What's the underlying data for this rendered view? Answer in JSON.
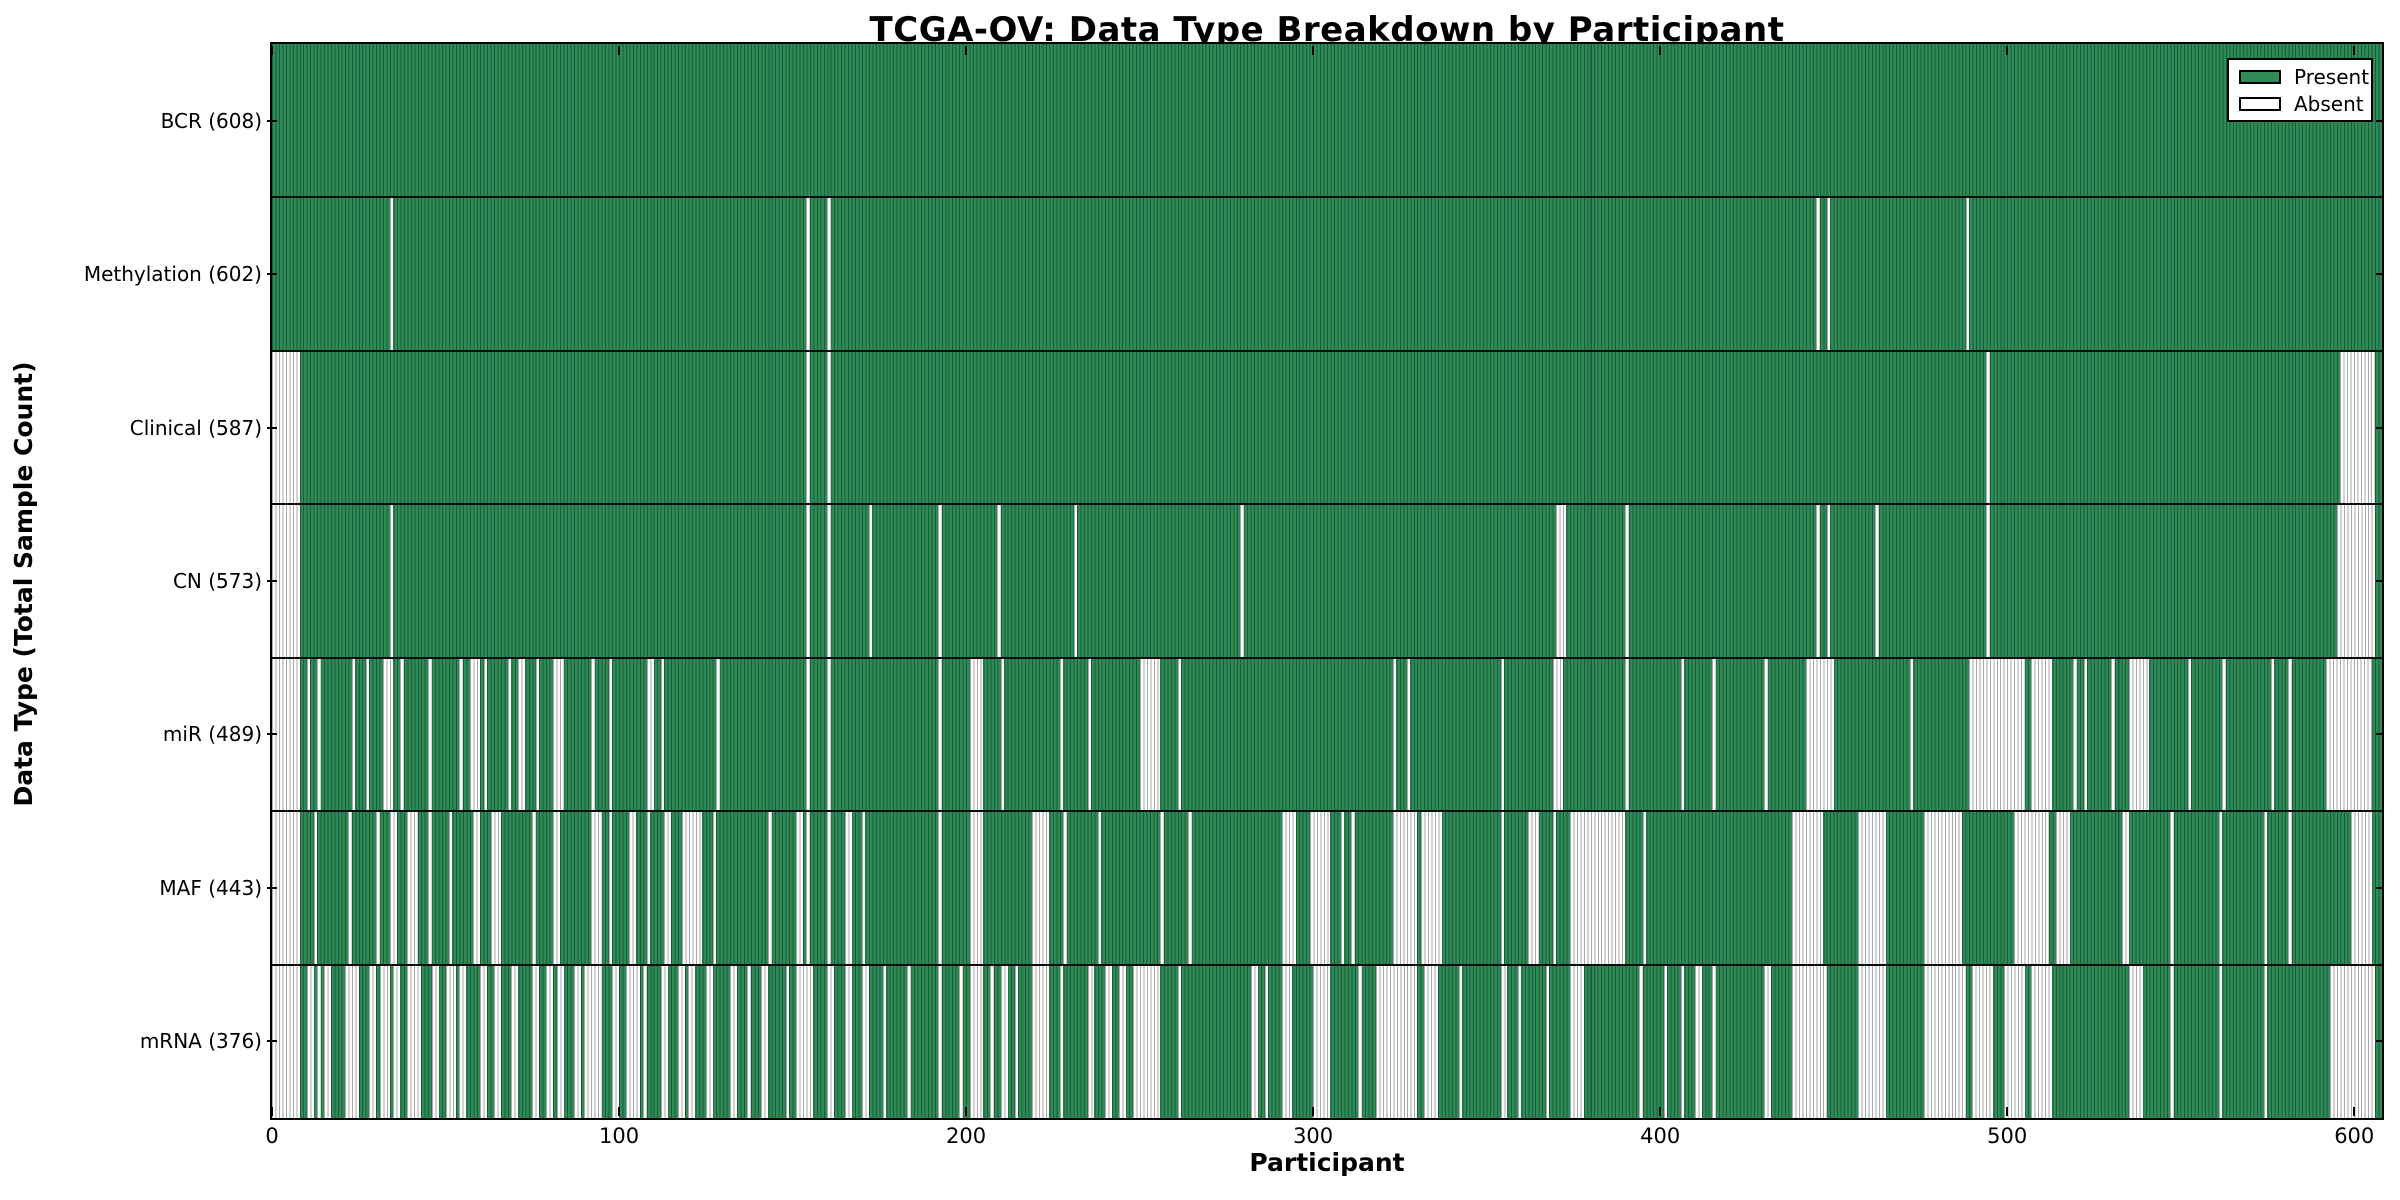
{
  "figure": {
    "title": "TCGA-OV: Data Type Breakdown by Participant",
    "xlabel": "Participant",
    "ylabel": "Data Type (Total Sample Count)"
  },
  "legend": {
    "present_label": "Present",
    "absent_label": "Absent"
  },
  "colors": {
    "present_fill": "#2e8b57",
    "present_edge": "#1a5c38",
    "absent_fill": "#fdfdfd",
    "absent_edge": "#a9a9a9",
    "frame": "#000000",
    "separator": "#0a0a0a"
  },
  "chart_data": {
    "type": "heatmap",
    "title": "TCGA-OV: Data Type Breakdown by Participant",
    "xlabel": "Participant",
    "ylabel": "Data Type (Total Sample Count)",
    "legend_entries": [
      {
        "label": "Present",
        "color": "#2e8b57"
      },
      {
        "label": "Absent",
        "color": "#ffffff"
      }
    ],
    "legend_position": "upper right",
    "grid": false,
    "n_participants": 608,
    "x_ticks": [
      0,
      100,
      200,
      300,
      400,
      500,
      600
    ],
    "x_range": [
      0,
      608
    ],
    "cell_values": "present unless participant index falls in absent_ranges (inclusive)",
    "rows": [
      {
        "label": "BCR (608)",
        "data_type": "BCR",
        "present_count": 608,
        "absent_ranges": []
      },
      {
        "label": "Methylation (602)",
        "data_type": "Methylation",
        "present_count": 602,
        "absent_ranges": [
          [
            34,
            34
          ],
          [
            154,
            154
          ],
          [
            160,
            160
          ],
          [
            445,
            445
          ],
          [
            448,
            448
          ],
          [
            488,
            488
          ]
        ]
      },
      {
        "label": "Clinical (587)",
        "data_type": "Clinical",
        "present_count": 587,
        "absent_ranges": [
          [
            0,
            7
          ],
          [
            154,
            154
          ],
          [
            160,
            160
          ],
          [
            494,
            494
          ],
          [
            596,
            605
          ]
        ]
      },
      {
        "label": "CN (573)",
        "data_type": "CN",
        "present_count": 573,
        "absent_ranges": [
          [
            0,
            7
          ],
          [
            34,
            34
          ],
          [
            154,
            154
          ],
          [
            160,
            160
          ],
          [
            172,
            172
          ],
          [
            192,
            192
          ],
          [
            209,
            209
          ],
          [
            231,
            231
          ],
          [
            279,
            279
          ],
          [
            370,
            372
          ],
          [
            390,
            390
          ],
          [
            445,
            445
          ],
          [
            448,
            448
          ],
          [
            462,
            462
          ],
          [
            494,
            494
          ],
          [
            595,
            605
          ]
        ]
      },
      {
        "label": "miR (489)",
        "data_type": "miR",
        "present_count": 489,
        "absent_ranges": [
          [
            0,
            7
          ],
          [
            10,
            10
          ],
          [
            13,
            13
          ],
          [
            23,
            23
          ],
          [
            27,
            27
          ],
          [
            32,
            34
          ],
          [
            37,
            37
          ],
          [
            45,
            45
          ],
          [
            54,
            54
          ],
          [
            57,
            59
          ],
          [
            61,
            61
          ],
          [
            68,
            68
          ],
          [
            71,
            72
          ],
          [
            76,
            76
          ],
          [
            81,
            83
          ],
          [
            92,
            92
          ],
          [
            97,
            97
          ],
          [
            108,
            109
          ],
          [
            112,
            112
          ],
          [
            128,
            128
          ],
          [
            154,
            154
          ],
          [
            160,
            160
          ],
          [
            192,
            192
          ],
          [
            201,
            204
          ],
          [
            210,
            210
          ],
          [
            227,
            227
          ],
          [
            235,
            235
          ],
          [
            250,
            255
          ],
          [
            261,
            261
          ],
          [
            323,
            323
          ],
          [
            327,
            327
          ],
          [
            354,
            354
          ],
          [
            369,
            371
          ],
          [
            390,
            390
          ],
          [
            406,
            406
          ],
          [
            415,
            415
          ],
          [
            430,
            430
          ],
          [
            442,
            449
          ],
          [
            472,
            472
          ],
          [
            489,
            504
          ],
          [
            507,
            512
          ],
          [
            519,
            519
          ],
          [
            522,
            522
          ],
          [
            530,
            530
          ],
          [
            535,
            540
          ],
          [
            552,
            552
          ],
          [
            562,
            562
          ],
          [
            576,
            576
          ],
          [
            581,
            581
          ],
          [
            592,
            604
          ]
        ]
      },
      {
        "label": "MAF (443)",
        "data_type": "MAF",
        "present_count": 443,
        "absent_ranges": [
          [
            0,
            7
          ],
          [
            12,
            12
          ],
          [
            22,
            22
          ],
          [
            30,
            30
          ],
          [
            34,
            35
          ],
          [
            39,
            41
          ],
          [
            45,
            45
          ],
          [
            51,
            51
          ],
          [
            58,
            59
          ],
          [
            63,
            65
          ],
          [
            75,
            75
          ],
          [
            81,
            82
          ],
          [
            92,
            94
          ],
          [
            97,
            97
          ],
          [
            103,
            104
          ],
          [
            108,
            108
          ],
          [
            113,
            114
          ],
          [
            118,
            123
          ],
          [
            127,
            127
          ],
          [
            143,
            143
          ],
          [
            151,
            152
          ],
          [
            154,
            154
          ],
          [
            160,
            160
          ],
          [
            165,
            166
          ],
          [
            170,
            170
          ],
          [
            192,
            192
          ],
          [
            201,
            204
          ],
          [
            219,
            223
          ],
          [
            228,
            228
          ],
          [
            238,
            238
          ],
          [
            256,
            256
          ],
          [
            264,
            264
          ],
          [
            291,
            294
          ],
          [
            299,
            304
          ],
          [
            308,
            308
          ],
          [
            311,
            311
          ],
          [
            323,
            329
          ],
          [
            331,
            336
          ],
          [
            354,
            354
          ],
          [
            362,
            364
          ],
          [
            369,
            369
          ],
          [
            374,
            389
          ],
          [
            395,
            395
          ],
          [
            438,
            446
          ],
          [
            457,
            464
          ],
          [
            476,
            486
          ],
          [
            502,
            511
          ],
          [
            514,
            517
          ],
          [
            533,
            534
          ],
          [
            547,
            547
          ],
          [
            561,
            561
          ],
          [
            574,
            574
          ],
          [
            581,
            581
          ],
          [
            599,
            604
          ]
        ]
      },
      {
        "label": "mRNA (376)",
        "data_type": "mRNA",
        "present_count": 376,
        "absent_ranges": [
          [
            0,
            7
          ],
          [
            10,
            11
          ],
          [
            13,
            13
          ],
          [
            15,
            16
          ],
          [
            21,
            24
          ],
          [
            28,
            29
          ],
          [
            31,
            33
          ],
          [
            35,
            36
          ],
          [
            39,
            42
          ],
          [
            46,
            47
          ],
          [
            50,
            52
          ],
          [
            54,
            55
          ],
          [
            60,
            61
          ],
          [
            64,
            65
          ],
          [
            69,
            70
          ],
          [
            75,
            76
          ],
          [
            79,
            80
          ],
          [
            82,
            83
          ],
          [
            87,
            88
          ],
          [
            90,
            94
          ],
          [
            98,
            99
          ],
          [
            102,
            105
          ],
          [
            107,
            107
          ],
          [
            112,
            113
          ],
          [
            117,
            118
          ],
          [
            120,
            121
          ],
          [
            125,
            126
          ],
          [
            132,
            133
          ],
          [
            137,
            137
          ],
          [
            141,
            142
          ],
          [
            148,
            148
          ],
          [
            151,
            155
          ],
          [
            160,
            161
          ],
          [
            165,
            166
          ],
          [
            170,
            171
          ],
          [
            176,
            176
          ],
          [
            183,
            183
          ],
          [
            192,
            192
          ],
          [
            198,
            198
          ],
          [
            201,
            204
          ],
          [
            207,
            207
          ],
          [
            210,
            211
          ],
          [
            214,
            214
          ],
          [
            219,
            223
          ],
          [
            227,
            227
          ],
          [
            235,
            236
          ],
          [
            240,
            241
          ],
          [
            244,
            245
          ],
          [
            248,
            255
          ],
          [
            261,
            261
          ],
          [
            282,
            283
          ],
          [
            286,
            286
          ],
          [
            291,
            293
          ],
          [
            300,
            304
          ],
          [
            313,
            313
          ],
          [
            318,
            329
          ],
          [
            332,
            335
          ],
          [
            342,
            342
          ],
          [
            354,
            355
          ],
          [
            359,
            359
          ],
          [
            367,
            367
          ],
          [
            374,
            377
          ],
          [
            394,
            394
          ],
          [
            401,
            401
          ],
          [
            406,
            406
          ],
          [
            410,
            411
          ],
          [
            415,
            415
          ],
          [
            430,
            431
          ],
          [
            438,
            447
          ],
          [
            457,
            464
          ],
          [
            476,
            487
          ],
          [
            490,
            495
          ],
          [
            499,
            504
          ],
          [
            507,
            512
          ],
          [
            535,
            538
          ],
          [
            547,
            547
          ],
          [
            561,
            561
          ],
          [
            574,
            574
          ],
          [
            593,
            605
          ]
        ]
      }
    ]
  }
}
